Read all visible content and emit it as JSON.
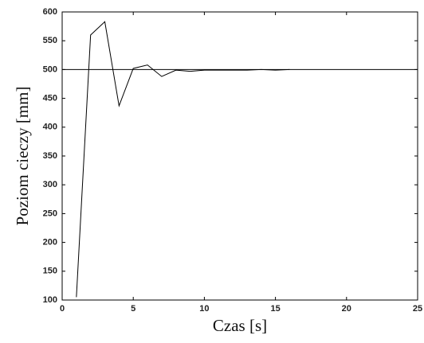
{
  "chart_data": {
    "type": "line",
    "x_label": "Czas [s]",
    "y_label": "Poziom cieczy [mm]",
    "xlim": [
      0,
      25
    ],
    "xticks": [
      0,
      5,
      10,
      15,
      20,
      25
    ],
    "ylim": [
      100,
      600
    ],
    "yticks": [
      100,
      150,
      200,
      250,
      300,
      350,
      400,
      450,
      500,
      550,
      600
    ],
    "grid": false,
    "series": [
      {
        "color": "#000000",
        "x": [
          1,
          2,
          3,
          4,
          5,
          6,
          7,
          8,
          9,
          10,
          11,
          12,
          13,
          14,
          15,
          16
        ],
        "values": [
          105,
          560,
          583,
          437,
          502,
          508,
          488,
          499,
          497,
          499,
          499,
          499,
          499,
          500,
          499,
          500
        ]
      },
      {
        "color": "#000000",
        "x": [
          0,
          25
        ],
        "values": [
          500,
          500
        ]
      }
    ]
  }
}
